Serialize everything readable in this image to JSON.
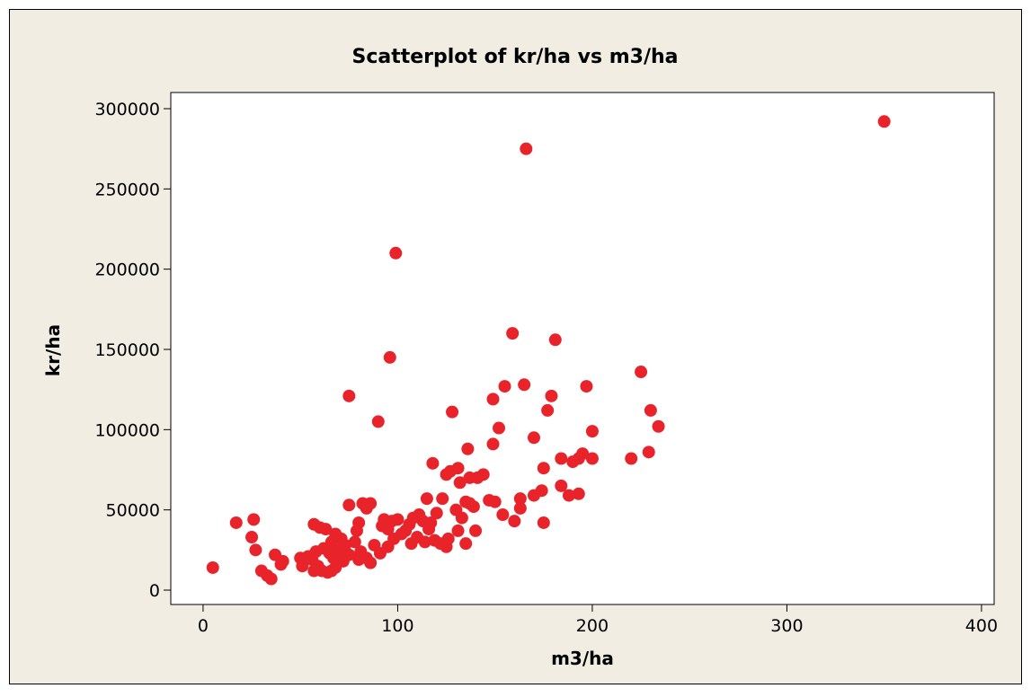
{
  "chart_data": {
    "type": "scatter",
    "title": "Scatterplot of kr/ha vs m3/ha",
    "x_label": "m3/ha",
    "y_label": "kr/ha",
    "color": "#e8232a",
    "xlim": [
      -16.6,
      406.5
    ],
    "ylim": [
      -8955,
      310075
    ],
    "xticks": [
      0,
      100,
      200,
      300,
      400
    ],
    "yticks": [
      0,
      50000,
      100000,
      150000,
      200000,
      250000,
      300000
    ],
    "x": [
      350,
      166,
      99,
      96,
      159,
      181,
      75,
      90,
      5,
      17,
      26,
      25,
      27,
      30,
      33,
      35,
      37,
      40,
      41,
      225,
      230,
      234,
      229,
      220,
      200,
      200,
      197,
      195,
      193,
      190,
      193,
      188,
      184,
      184,
      179,
      177,
      175,
      174,
      175,
      170,
      170,
      165,
      163,
      163,
      160,
      155,
      154,
      152,
      149,
      149,
      150,
      147,
      144,
      141,
      137,
      136,
      137,
      135,
      139,
      140,
      135,
      128,
      131,
      132,
      127,
      125,
      130,
      133,
      131,
      125,
      118,
      115,
      123,
      120,
      117,
      116,
      119,
      122,
      126,
      113,
      111,
      108,
      106,
      104,
      102,
      110,
      107,
      114,
      100,
      97,
      93,
      92,
      95,
      98,
      95,
      91,
      88,
      86,
      82,
      84,
      80,
      79,
      78,
      75,
      81,
      84,
      86,
      80,
      73,
      71,
      68,
      66,
      70,
      65,
      67,
      63,
      60,
      57,
      68,
      64,
      61,
      59,
      56,
      54,
      50,
      51,
      58,
      62,
      72,
      75,
      69,
      66,
      57
    ],
    "y": [
      292000,
      275000,
      210000,
      145000,
      160000,
      156000,
      121000,
      105000,
      14000,
      42000,
      44000,
      33000,
      25000,
      12000,
      9000,
      7000,
      22000,
      16000,
      18000,
      136000,
      112000,
      102000,
      86000,
      82000,
      99000,
      82000,
      127000,
      85000,
      82000,
      80000,
      60000,
      59000,
      65000,
      82000,
      121000,
      112000,
      76000,
      62000,
      42000,
      95000,
      59000,
      128000,
      57000,
      51000,
      43000,
      127000,
      47000,
      101000,
      91000,
      119000,
      55000,
      56000,
      72000,
      70000,
      70000,
      88000,
      54000,
      55000,
      52000,
      37000,
      29000,
      111000,
      76000,
      67000,
      74000,
      72000,
      50000,
      45000,
      37000,
      27000,
      79000,
      57000,
      57000,
      48000,
      42000,
      38000,
      31000,
      29000,
      32000,
      43000,
      47000,
      45000,
      41000,
      37000,
      35000,
      33000,
      29000,
      30000,
      44000,
      43000,
      44000,
      40000,
      38000,
      32000,
      27000,
      23000,
      28000,
      54000,
      54000,
      51000,
      42000,
      37000,
      30000,
      53000,
      24000,
      20000,
      17000,
      19000,
      28000,
      32000,
      35000,
      30000,
      25000,
      23000,
      20000,
      38000,
      39000,
      41000,
      14000,
      11000,
      12000,
      15000,
      19000,
      21000,
      20000,
      15000,
      24000,
      26000,
      18000,
      22000,
      17000,
      12000,
      12000
    ]
  }
}
